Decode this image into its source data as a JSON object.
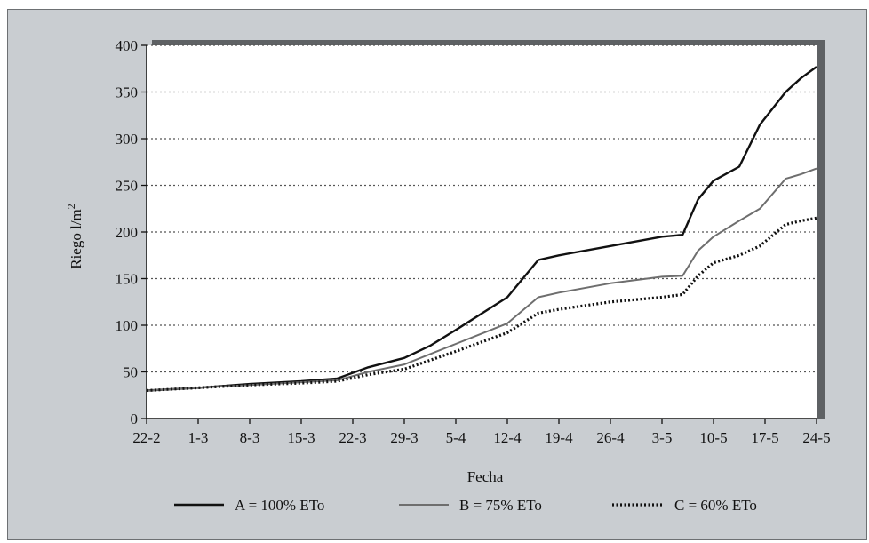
{
  "colors": {
    "panel": "#c9cdd1",
    "plot": "#ffffff",
    "shadow": "#5e6164",
    "grid": "#555555",
    "seriesA": "#111111",
    "seriesB": "#6e6e6e",
    "seriesC": "#111111"
  },
  "chart_data": {
    "type": "line",
    "xlabel": "Fecha",
    "ylabel": "Riego l/m",
    "ylabel_sup": "2",
    "ylim": [
      0,
      400
    ],
    "yticks": [
      0,
      50,
      100,
      150,
      200,
      250,
      300,
      350,
      400
    ],
    "grid": "horizontal dotted",
    "legend_position": "bottom",
    "x_ticks": [
      "22-2",
      "1-3",
      "8-3",
      "15-3",
      "22-3",
      "29-3",
      "5-4",
      "12-4",
      "19-4",
      "26-4",
      "3-5",
      "10-5",
      "17-5",
      "24-5"
    ],
    "series": [
      {
        "name": "A = 100% ETo",
        "style": "solid-dark",
        "x": [
          0,
          1,
          2,
          3,
          3.7,
          4.3,
          5,
          5.5,
          6,
          7,
          7.6,
          8,
          9,
          10,
          10.4,
          10.7,
          11,
          11.5,
          11.9,
          12.4,
          12.7,
          13
        ],
        "y": [
          30,
          33,
          37,
          40,
          43,
          55,
          65,
          78,
          95,
          130,
          170,
          175,
          185,
          195,
          197,
          235,
          255,
          270,
          315,
          350,
          365,
          377
        ]
      },
      {
        "name": "B = 75% ETo",
        "style": "solid-gray",
        "x": [
          0,
          1,
          2,
          3,
          3.7,
          4.3,
          5,
          6,
          7,
          7.6,
          8,
          9,
          10,
          10.4,
          10.7,
          11,
          11.5,
          11.9,
          12.4,
          12.7,
          13
        ],
        "y": [
          30,
          33,
          36,
          39,
          41,
          50,
          58,
          80,
          102,
          130,
          135,
          145,
          152,
          153,
          180,
          195,
          212,
          225,
          257,
          262,
          268
        ]
      },
      {
        "name": "C = 60% ETo",
        "style": "dotted-dark",
        "x": [
          0,
          1,
          2,
          3,
          3.7,
          4.3,
          5,
          6,
          7,
          7.6,
          8,
          9,
          10,
          10.4,
          10.7,
          11,
          11.5,
          11.9,
          12.4,
          12.7,
          13
        ],
        "y": [
          30,
          33,
          36,
          38,
          40,
          47,
          53,
          72,
          92,
          113,
          117,
          125,
          130,
          133,
          153,
          167,
          175,
          185,
          208,
          212,
          215
        ]
      }
    ]
  }
}
